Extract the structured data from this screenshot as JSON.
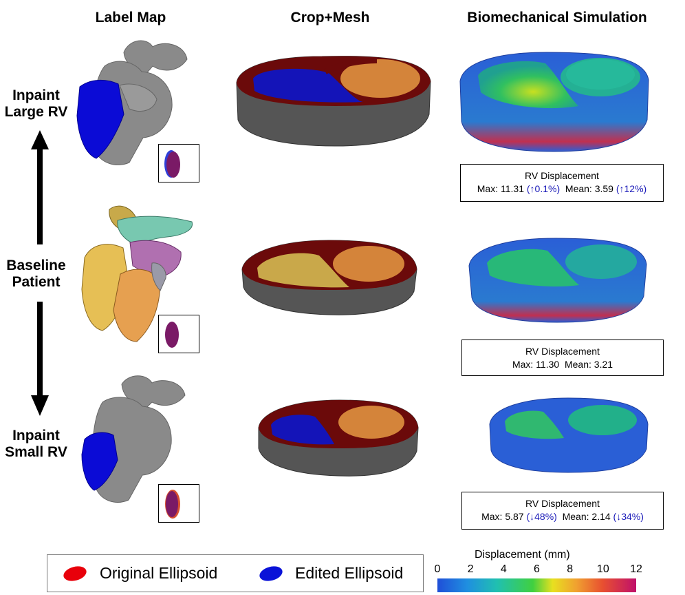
{
  "columns": {
    "label_map": "Label Map",
    "crop_mesh": "Crop+Mesh",
    "biomech": "Biomechanical Simulation"
  },
  "rows": {
    "large": {
      "line1": "Inpaint",
      "line2": "Large RV"
    },
    "baseline": {
      "line1": "Baseline",
      "line2": "Patient"
    },
    "small": {
      "line1": "Inpaint",
      "line2": "Small RV"
    }
  },
  "stats": {
    "large": {
      "title": "RV Displacement",
      "max_label": "Max:",
      "max": "11.31",
      "max_change": "(↑0.1%)",
      "mean_label": "Mean:",
      "mean": "3.59",
      "mean_change": "(↑12%)"
    },
    "baseline": {
      "title": "RV Displacement",
      "max_label": "Max:",
      "max": "11.30",
      "mean_label": "Mean:",
      "mean": "3.21"
    },
    "small": {
      "title": "RV Displacement",
      "max_label": "Max:",
      "max": "5.87",
      "max_change": "(↓48%)",
      "mean_label": "Mean:",
      "mean": "2.14",
      "mean_change": "(↓34%)"
    }
  },
  "legend": {
    "original": "Original Ellipsoid",
    "edited": "Edited Ellipsoid",
    "original_color": "#e8000b",
    "edited_color": "#0a12d8"
  },
  "colorbar": {
    "title": "Displacement (mm)",
    "ticks": [
      "0",
      "2",
      "4",
      "6",
      "8",
      "10",
      "12"
    ]
  },
  "colors": {
    "myocardium": "#6b0a0a",
    "lv_cavity": "#d4843a",
    "rv_edited": "#1414b8",
    "rv_baseline": "#c9a84a",
    "label_grey": "#8a8a8a",
    "sim_blue": "#2a5fd6"
  }
}
